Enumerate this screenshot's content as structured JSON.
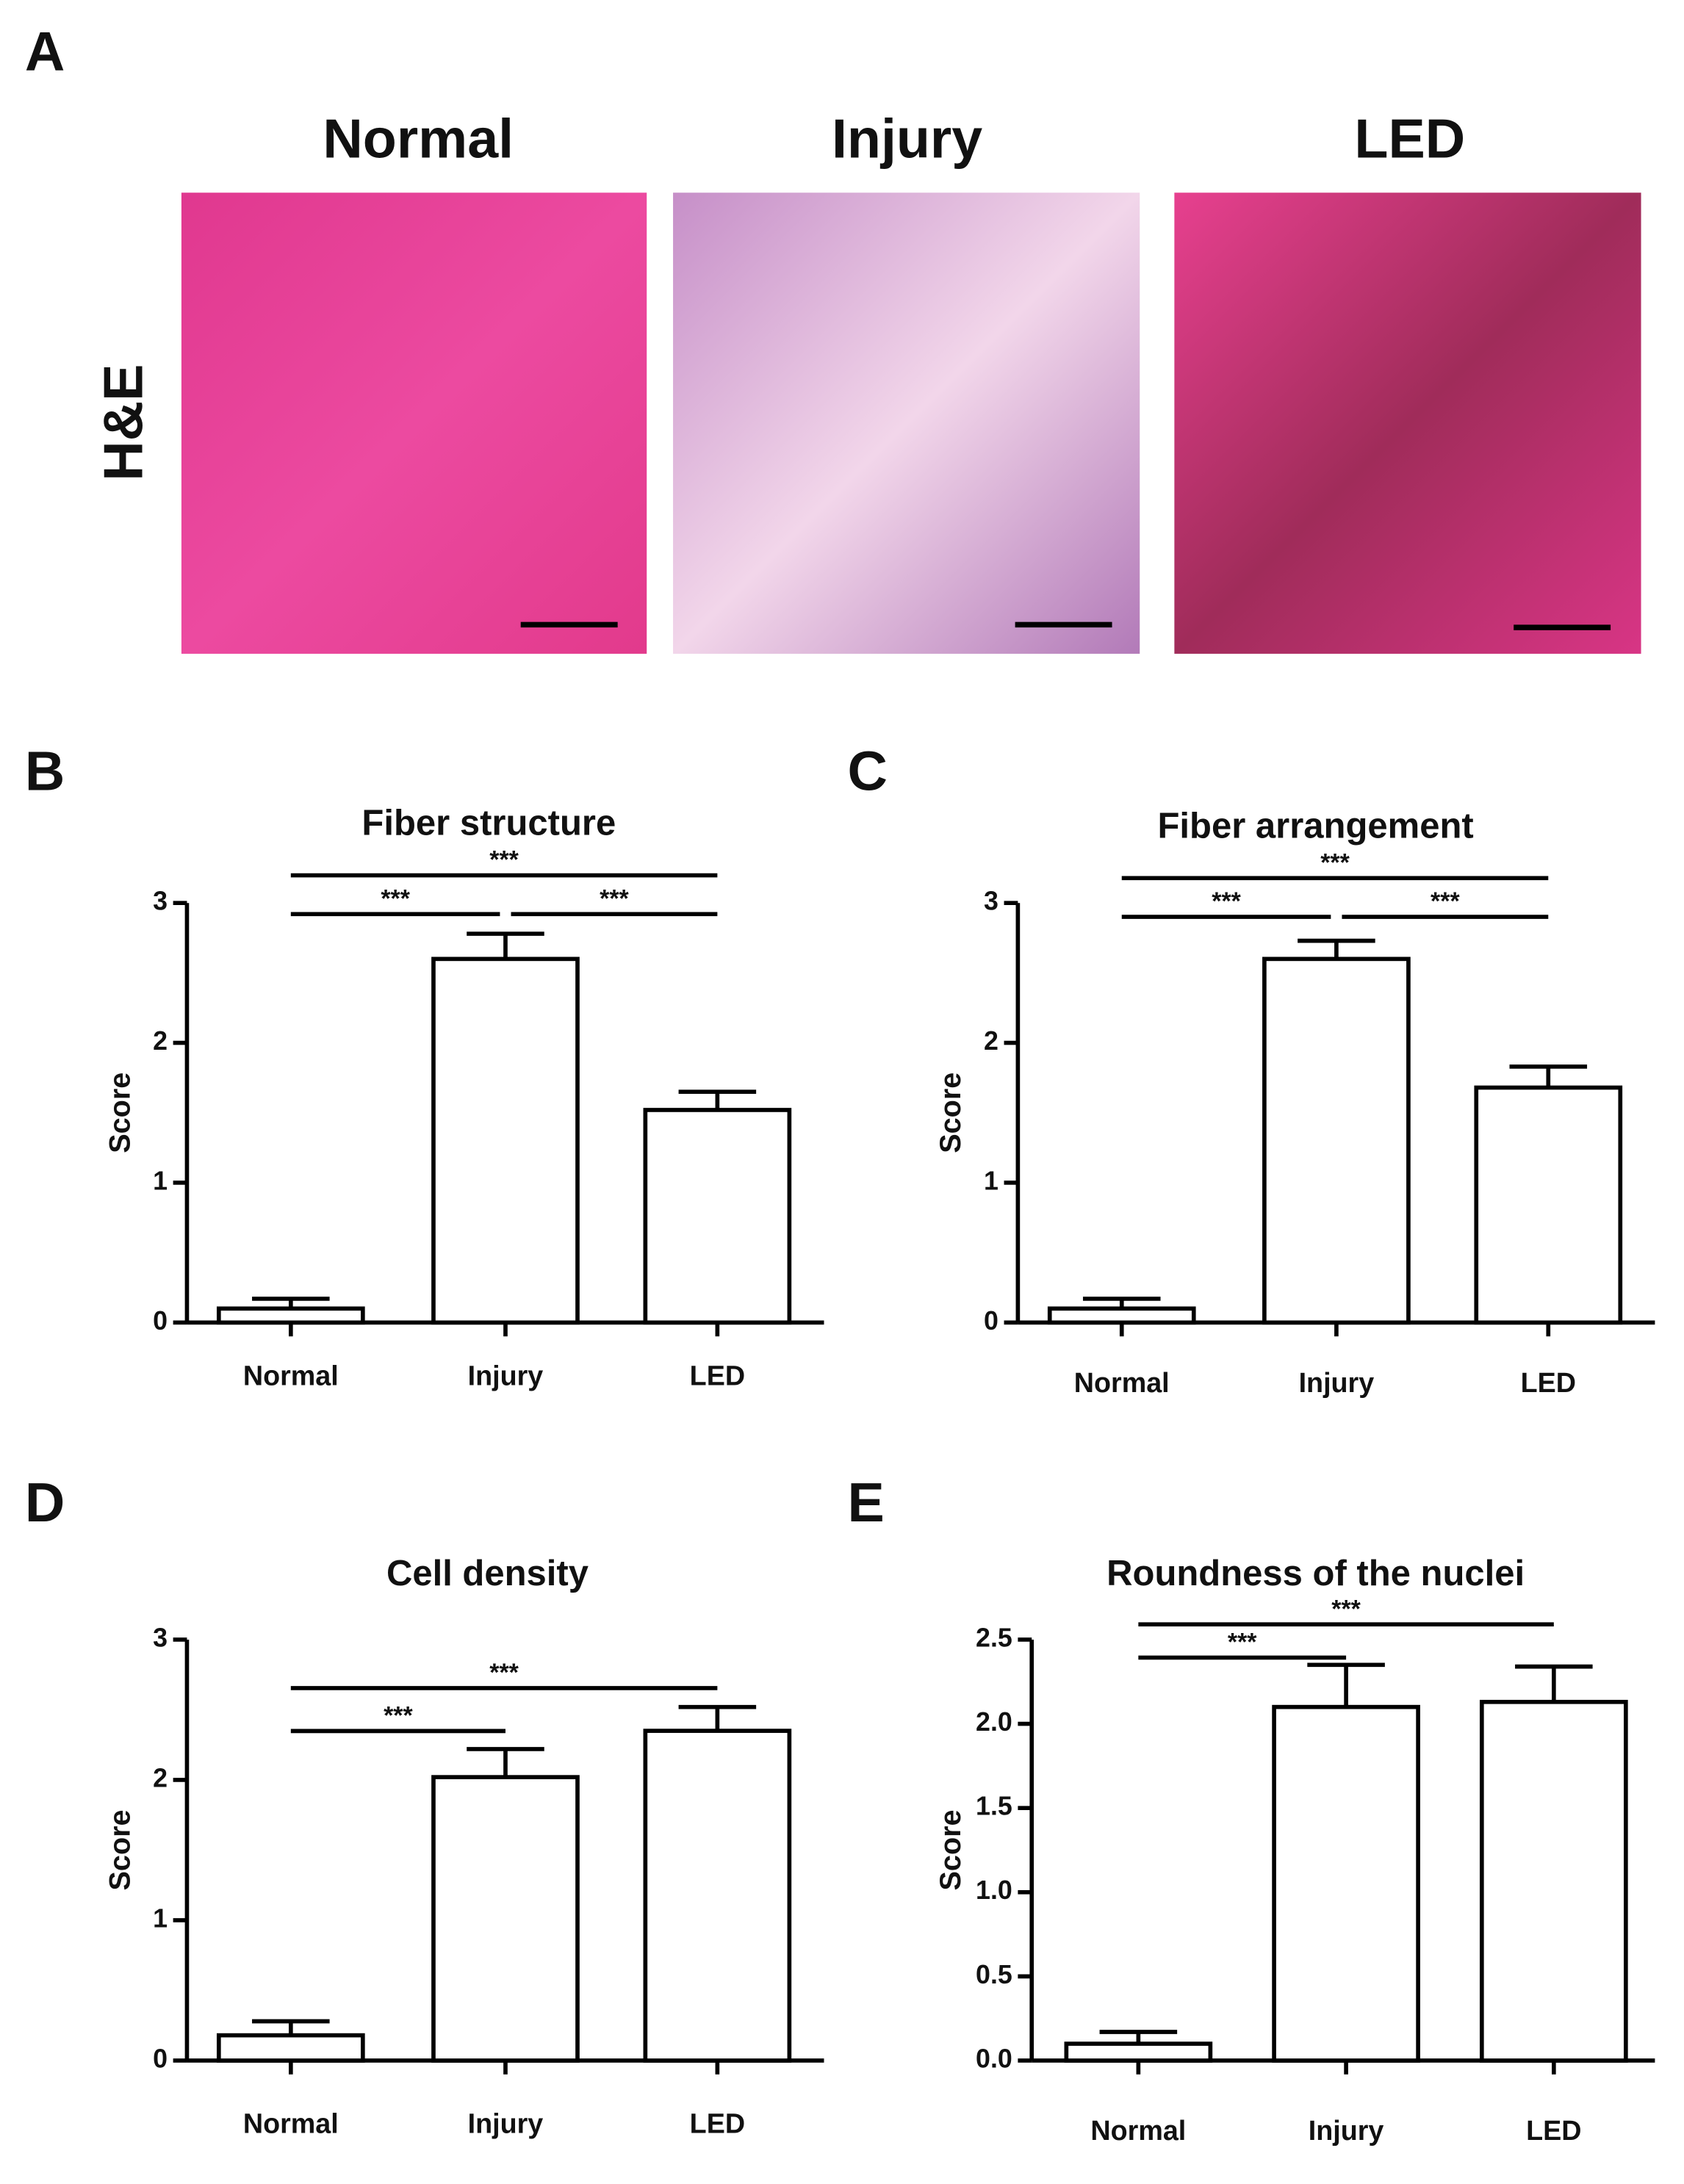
{
  "panel_a": {
    "label": "A",
    "row_label": "H&E",
    "columns": [
      "Normal",
      "Injury",
      "LED"
    ]
  },
  "chart_data": [
    {
      "type": "bar",
      "label": "B",
      "title": "Fiber structure",
      "y_label": "Score",
      "categories": [
        "Normal",
        "Injury",
        "LED"
      ],
      "values": [
        0.1,
        2.6,
        1.52
      ],
      "errors": [
        0.07,
        0.18,
        0.13
      ],
      "ylim": [
        0,
        3
      ],
      "yticks": [
        0,
        1,
        2,
        3
      ],
      "color": "#ffffff",
      "annotations": [
        {
          "text": "***",
          "pair": [
            "Normal",
            "Injury"
          ]
        },
        {
          "text": "***",
          "pair": [
            "Injury",
            "LED"
          ]
        },
        {
          "text": "***",
          "pair": [
            "Normal",
            "LED"
          ]
        }
      ]
    },
    {
      "type": "bar",
      "label": "C",
      "title": "Fiber arrangement",
      "y_label": "Score",
      "categories": [
        "Normal",
        "Injury",
        "LED"
      ],
      "values": [
        0.1,
        2.6,
        1.68
      ],
      "errors": [
        0.07,
        0.13,
        0.15
      ],
      "ylim": [
        0,
        3
      ],
      "yticks": [
        0,
        1,
        2,
        3
      ],
      "color": "#ffffff",
      "annotations": [
        {
          "text": "***",
          "pair": [
            "Normal",
            "Injury"
          ]
        },
        {
          "text": "***",
          "pair": [
            "Injury",
            "LED"
          ]
        },
        {
          "text": "***",
          "pair": [
            "Normal",
            "LED"
          ]
        }
      ]
    },
    {
      "type": "bar",
      "label": "D",
      "title": "Cell density",
      "y_label": "Score",
      "categories": [
        "Normal",
        "Injury",
        "LED"
      ],
      "values": [
        0.18,
        2.02,
        2.35
      ],
      "errors": [
        0.1,
        0.2,
        0.17
      ],
      "ylim": [
        0,
        3
      ],
      "yticks": [
        0,
        1,
        2,
        3
      ],
      "color": "#ffffff",
      "annotations": [
        {
          "text": "***",
          "pair": [
            "Normal",
            "Injury"
          ]
        },
        {
          "text": "***",
          "pair": [
            "Normal",
            "LED"
          ]
        }
      ]
    },
    {
      "type": "bar",
      "label": "E",
      "title": "Roundness of the nuclei",
      "y_label": "Score",
      "categories": [
        "Normal",
        "Injury",
        "LED"
      ],
      "values": [
        0.1,
        2.1,
        2.13
      ],
      "errors": [
        0.07,
        0.25,
        0.21
      ],
      "ylim": [
        0,
        2.5
      ],
      "yticks": [
        {
          "value": 0,
          "label": "0.0"
        },
        0.5,
        {
          "value": 1,
          "label": "1.0"
        },
        1.5,
        {
          "value": 2,
          "label": "2.0"
        },
        2.5
      ],
      "color": "#ffffff",
      "annotations": [
        {
          "text": "***",
          "pair": [
            "Normal",
            "Injury"
          ]
        },
        {
          "text": "***",
          "pair": [
            "Normal",
            "LED"
          ]
        }
      ]
    }
  ]
}
